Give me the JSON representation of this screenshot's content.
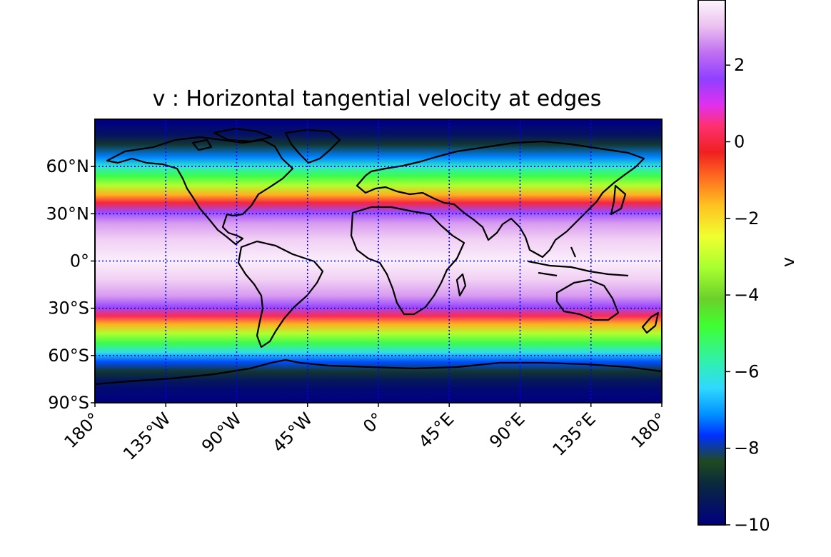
{
  "title": "v : Horizontal tangential velocity at edges",
  "latitude_ticks": [
    {
      "value": 60,
      "label": "60°N"
    },
    {
      "value": 30,
      "label": "30°N"
    },
    {
      "value": 0,
      "label": "0°"
    },
    {
      "value": -30,
      "label": "30°S"
    },
    {
      "value": -60,
      "label": "60°S"
    },
    {
      "value": -90,
      "label": "90°S"
    }
  ],
  "longitude_ticks": [
    {
      "value": -180,
      "label": "180°"
    },
    {
      "value": -135,
      "label": "135°W"
    },
    {
      "value": -90,
      "label": "90°W"
    },
    {
      "value": -45,
      "label": "45°W"
    },
    {
      "value": 0,
      "label": "0°"
    },
    {
      "value": 45,
      "label": "45°E"
    },
    {
      "value": 90,
      "label": "90°E"
    },
    {
      "value": 135,
      "label": "135°E"
    },
    {
      "value": 180,
      "label": "180°"
    }
  ],
  "colorbar": {
    "label": "v",
    "colormap": "gist_ncar",
    "range": [
      -10,
      3.7
    ],
    "ticks": [
      {
        "value": 2,
        "label": "2"
      },
      {
        "value": 0,
        "label": "0"
      },
      {
        "value": -2,
        "label": "−2"
      },
      {
        "value": -4,
        "label": "−4"
      },
      {
        "value": -6,
        "label": "−6"
      },
      {
        "value": -8,
        "label": "−8"
      },
      {
        "value": -10,
        "label": "−10"
      }
    ]
  },
  "map_extent": {
    "lon": [
      -180,
      180
    ],
    "lat": [
      -90,
      90
    ]
  },
  "gridlines": {
    "color": "#0000ff",
    "style": "dotted",
    "lat_step": 30,
    "lon_step": 45
  },
  "field_bands": [
    {
      "lat": 88,
      "value": -10
    },
    {
      "lat": 80,
      "value": -9.5
    },
    {
      "lat": 74,
      "value": -8.7
    },
    {
      "lat": 66,
      "value": -7.2
    },
    {
      "lat": 60,
      "value": -6.0
    },
    {
      "lat": 54,
      "value": -5.0
    },
    {
      "lat": 48,
      "value": -3.2
    },
    {
      "lat": 42,
      "value": -1.5
    },
    {
      "lat": 37,
      "value": 0.0
    },
    {
      "lat": 31,
      "value": 1.8
    },
    {
      "lat": 24,
      "value": 2.7
    },
    {
      "lat": 14,
      "value": 3.2
    },
    {
      "lat": 0,
      "value": 3.6
    },
    {
      "lat": -12,
      "value": 3.2
    },
    {
      "lat": -22,
      "value": 2.7
    },
    {
      "lat": -29,
      "value": 1.8
    },
    {
      "lat": -35,
      "value": 0.2
    },
    {
      "lat": -40,
      "value": -1.5
    },
    {
      "lat": -46,
      "value": -3.2
    },
    {
      "lat": -52,
      "value": -5.0
    },
    {
      "lat": -58,
      "value": -6.2
    },
    {
      "lat": -64,
      "value": -7.5
    },
    {
      "lat": -70,
      "value": -8.7
    },
    {
      "lat": -76,
      "value": -9.4
    },
    {
      "lat": -82,
      "value": -9.8
    },
    {
      "lat": -90,
      "value": -10
    }
  ]
}
